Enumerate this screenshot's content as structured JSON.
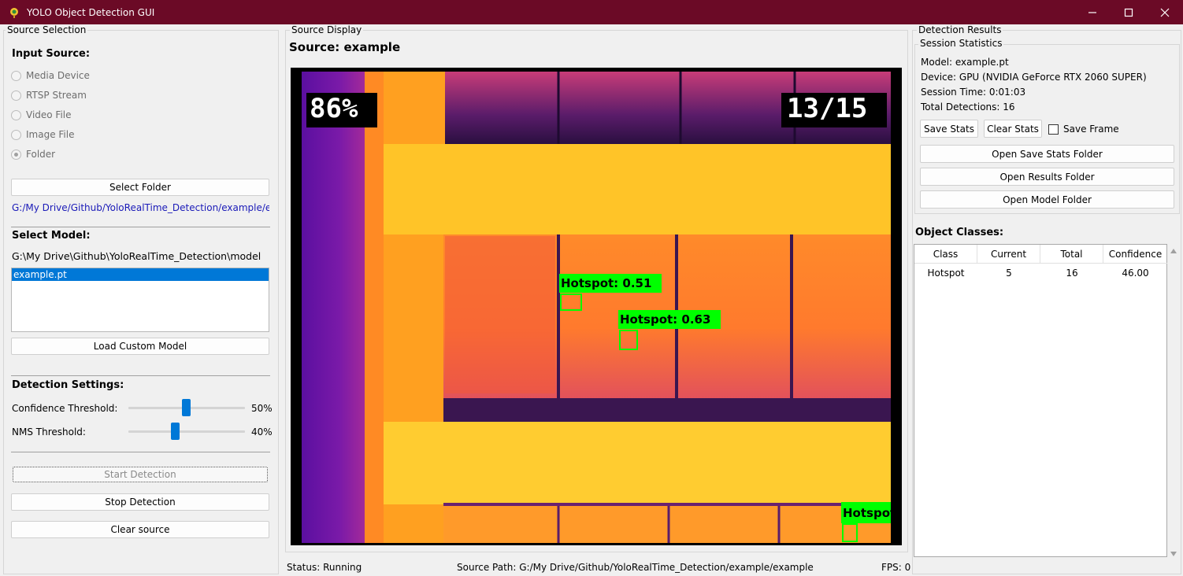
{
  "window": {
    "title": "YOLO Object Detection GUI"
  },
  "source_selection": {
    "group_label": "Source Selection",
    "input_source_heading": "Input Source:",
    "options": [
      "Media Device",
      "RTSP Stream",
      "Video File",
      "Image File",
      "Folder"
    ],
    "selected": "Folder",
    "select_folder_label": "Select Folder",
    "folder_path": "G:/My Drive/Github/YoloRealTime_Detection/example/example",
    "select_model_heading": "Select Model:",
    "model_dir": "G:\\My Drive\\Github\\YoloRealTime_Detection\\model",
    "models": [
      "example.pt"
    ],
    "load_custom_label": "Load Custom Model",
    "detection_settings_heading": "Detection Settings:",
    "confidence_label": "Confidence Threshold:",
    "confidence_value": "50%",
    "confidence_level": 0.5,
    "nms_label": "NMS Threshold:",
    "nms_value": "40%",
    "nms_level": 0.4,
    "start_label": "Start Detection",
    "stop_label": "Stop Detection",
    "clear_label": "Clear source"
  },
  "source_display": {
    "group_label": "Source Display",
    "title": "Source: example",
    "overlay_left": "86%",
    "overlay_right": "13/15",
    "detections": [
      {
        "label": "Hotspot: 0.51"
      },
      {
        "label": "Hotspot: 0.63"
      },
      {
        "label": "Hotspot"
      }
    ]
  },
  "status_bar": {
    "status": "Status: Running",
    "source_path": "Source Path: G:/My Drive/Github/YoloRealTime_Detection/example/example",
    "fps": "FPS: 0"
  },
  "detection_results": {
    "group_label": "Detection Results",
    "session_label": "Session Statistics",
    "model": "Model: example.pt",
    "device": "Device: GPU (NVIDIA GeForce RTX 2060 SUPER)",
    "session_time": "Session Time: 0:01:03",
    "total_detections": "Total Detections: 16",
    "save_stats_label": "Save Stats",
    "clear_stats_label": "Clear Stats",
    "save_frame_label": "Save Frame",
    "open_stats_folder_label": "Open Save Stats Folder",
    "open_results_folder_label": "Open Results Folder",
    "open_model_folder_label": "Open Model Folder",
    "object_classes_heading": "Object Classes:",
    "table": {
      "columns": [
        "Class",
        "Current",
        "Total",
        "Confidence"
      ],
      "rows": [
        [
          "Hotspot",
          "5",
          "16",
          "46.00"
        ]
      ]
    }
  },
  "colors": {
    "titlebar": "#6b0a26",
    "accent": "#0078d7",
    "detection_box": "#00ff00"
  }
}
